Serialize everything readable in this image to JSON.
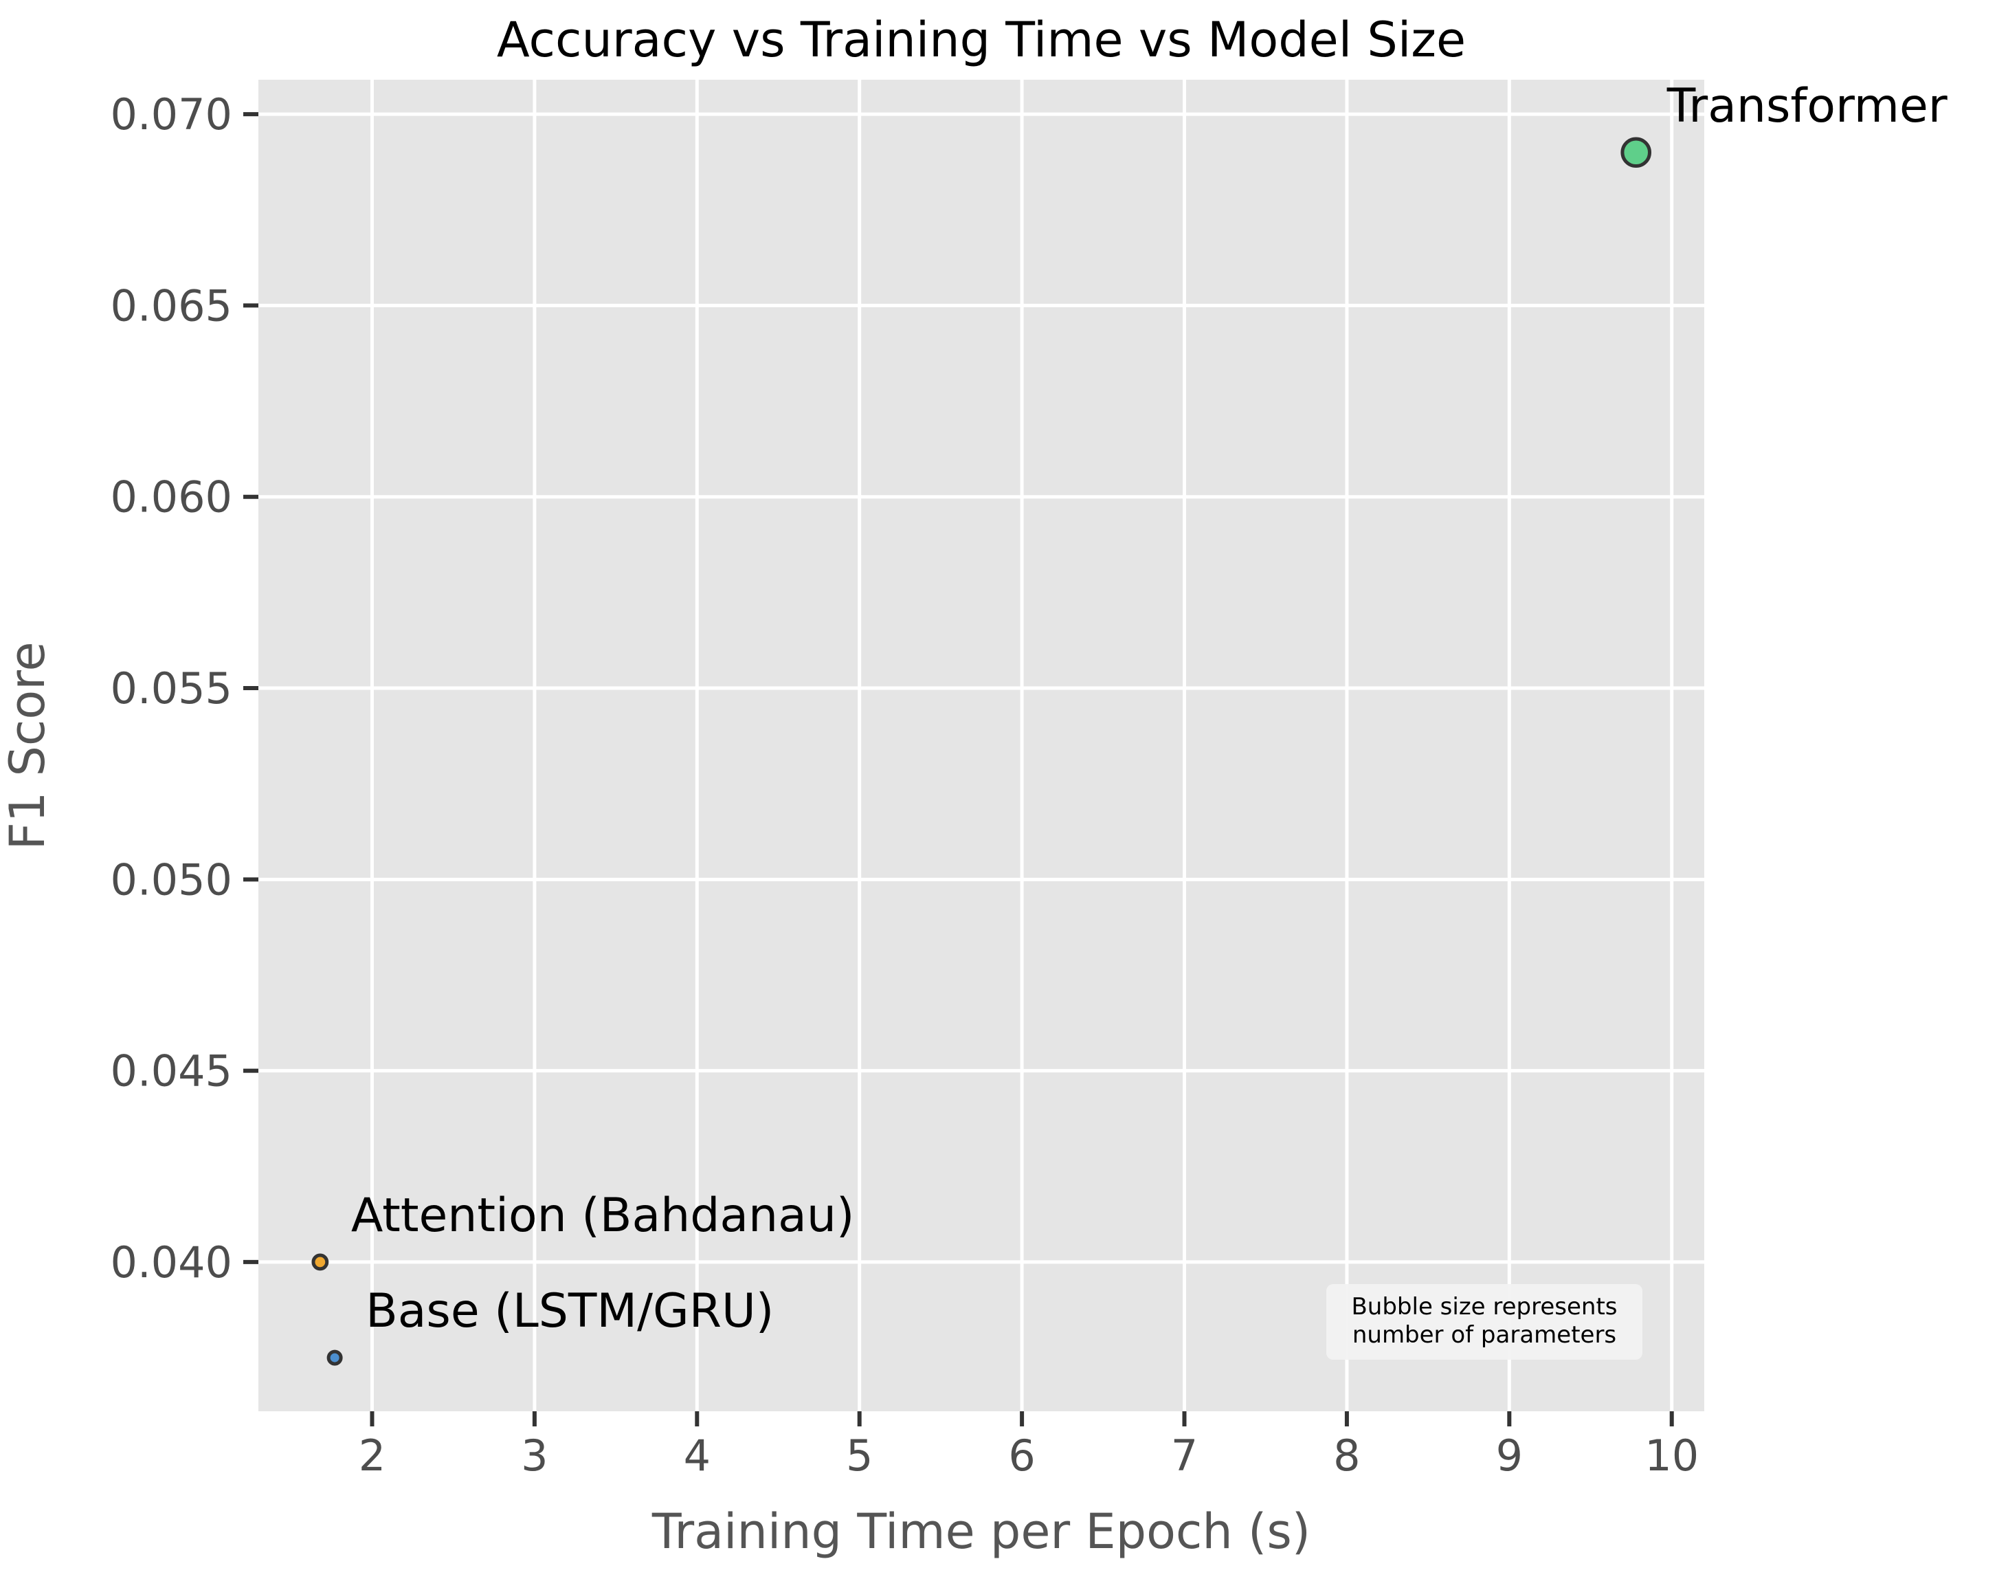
{
  "chart_data": {
    "type": "scatter",
    "title": "Accuracy vs Training Time vs Model Size",
    "xlabel": "Training Time per Epoch (s)",
    "ylabel": "F1 Score",
    "xlim": [
      1.3,
      10.2
    ],
    "ylim": [
      0.0361,
      0.0709
    ],
    "xticks": [
      2,
      3,
      4,
      5,
      6,
      7,
      8,
      9,
      10
    ],
    "xtick_labels": [
      "2",
      "3",
      "4",
      "5",
      "6",
      "7",
      "8",
      "9",
      "10"
    ],
    "yticks": [
      0.04,
      0.045,
      0.05,
      0.055,
      0.06,
      0.065,
      0.07
    ],
    "ytick_labels": [
      "0.040",
      "0.045",
      "0.050",
      "0.055",
      "0.060",
      "0.065",
      "0.070"
    ],
    "grid": true,
    "background": "#e5e5e5",
    "points": [
      {
        "label": "Base (LSTM/GRU)",
        "x": 1.77,
        "y": 0.0375,
        "size": 1,
        "color": "#4c8fcf"
      },
      {
        "label": "Attention (Bahdanau)",
        "x": 1.68,
        "y": 0.04,
        "size": 1.1,
        "color": "#f0a830"
      },
      {
        "label": "Transformer",
        "x": 9.78,
        "y": 0.069,
        "size": 2.2,
        "color": "#5fcf8a"
      }
    ],
    "note": [
      "Bubble size represents",
      "number of parameters"
    ]
  }
}
